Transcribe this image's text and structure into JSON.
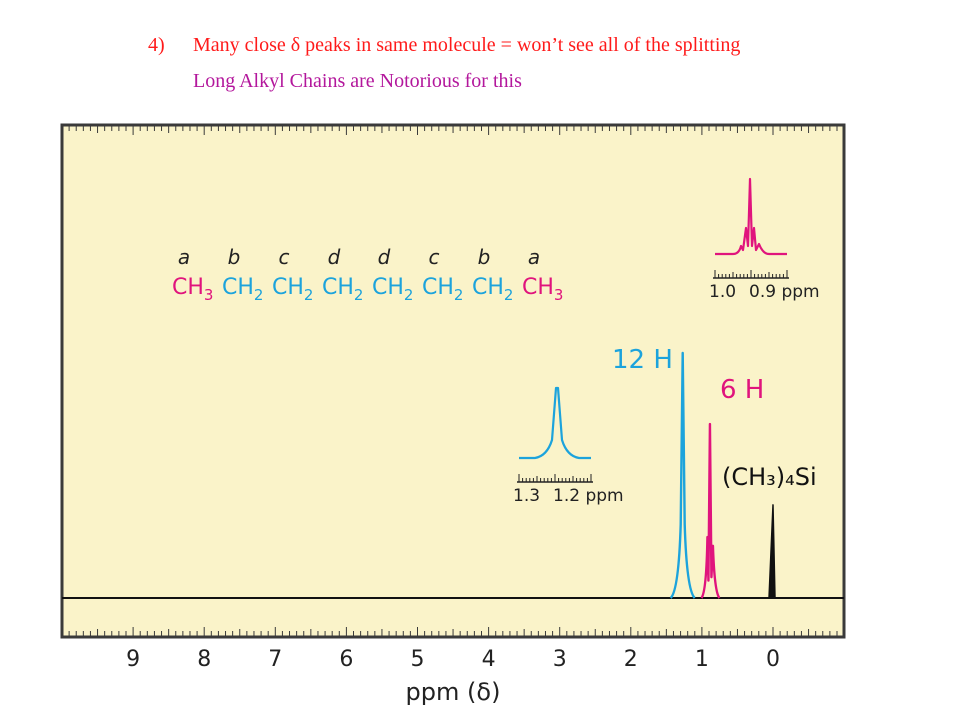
{
  "slide": {
    "point_number": "4)",
    "point_text": "Many close δ peaks in same molecule = won’t see all of the splitting",
    "sub_point": "Long Alkyl Chains are Notorious for this"
  },
  "molecule": {
    "labels": [
      "a",
      "b",
      "c",
      "d",
      "d",
      "c",
      "b",
      "a"
    ],
    "groups": [
      {
        "base": "CH",
        "sub": "3",
        "color": "magenta"
      },
      {
        "base": "CH",
        "sub": "2",
        "color": "cyan"
      },
      {
        "base": "CH",
        "sub": "2",
        "color": "cyan"
      },
      {
        "base": "CH",
        "sub": "2",
        "color": "cyan"
      },
      {
        "base": "CH",
        "sub": "2",
        "color": "cyan"
      },
      {
        "base": "CH",
        "sub": "2",
        "color": "cyan"
      },
      {
        "base": "CH",
        "sub": "2",
        "color": "cyan"
      },
      {
        "base": "CH",
        "sub": "3",
        "color": "magenta"
      }
    ]
  },
  "colors": {
    "cyan": "#1ca3dc",
    "magenta": "#e0147d",
    "black": "#111111",
    "panel": "#faf3c9",
    "panel_border": "#3a3a3a",
    "header_red": "#ff1a1a",
    "header_purple": "#b3179c"
  },
  "chart_data": {
    "type": "line",
    "title": "",
    "xlabel": "ppm (δ)",
    "ylabel": "",
    "x_reversed": true,
    "xlim": [
      10.0,
      -1.0
    ],
    "x_ticks": [
      9,
      8,
      7,
      6,
      5,
      4,
      3,
      2,
      1,
      0
    ],
    "grid": false,
    "series": [
      {
        "peak_ppm": 1.27,
        "label": "12 H",
        "color": "cyan",
        "relative_height": 1.0
      },
      {
        "peak_ppm": 0.88,
        "label": "6 H",
        "color": "magenta",
        "relative_height": 0.71
      },
      {
        "peak_ppm": 0.0,
        "label": "(CH₃)₄Si",
        "color": "black",
        "relative_height": 0.38
      }
    ],
    "insets": [
      {
        "name": "triplet",
        "axis_left": "1.0",
        "axis_right": "0.9 ppm",
        "color": "magenta"
      },
      {
        "name": "singlet",
        "axis_left": "1.3",
        "axis_right": "1.2 ppm",
        "color": "cyan"
      }
    ]
  }
}
